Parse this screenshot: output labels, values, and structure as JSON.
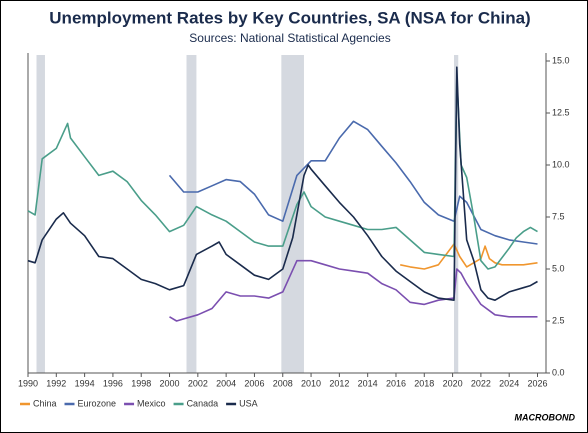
{
  "chart_data": {
    "type": "line",
    "title": "Unemployment Rates by Key Countries, SA (NSA for China)",
    "subtitle": "Sources: National Statistical Agencies",
    "source_logo": "MACROBOND",
    "xlim": [
      1990,
      2026.6
    ],
    "xticks": [
      1990,
      1992,
      1994,
      1996,
      1998,
      2000,
      2002,
      2004,
      2006,
      2008,
      2010,
      2012,
      2014,
      2016,
      2018,
      2020,
      2022,
      2024,
      2026
    ],
    "ylim": [
      0,
      15
    ],
    "yticks": [
      {
        "value": 0,
        "label": "0.0"
      },
      {
        "value": 2.5,
        "label": "2.5"
      },
      {
        "value": 5,
        "label": "5.0"
      },
      {
        "value": 7.5,
        "label": "7.5"
      },
      {
        "value": 10,
        "label": "10.0"
      },
      {
        "value": 12.5,
        "label": "12.5"
      },
      {
        "value": 15,
        "label": "15.0"
      }
    ],
    "shaded_periods": [
      [
        1990.6,
        1991.2
      ],
      [
        2001.2,
        2001.9
      ],
      [
        2007.9,
        2009.5
      ],
      [
        2020.1,
        2020.4
      ]
    ],
    "series": [
      {
        "name": "China",
        "color": "#f0962e",
        "x": [
          2016.3,
          2017,
          2018,
          2019,
          2020.1,
          2020.5,
          2021,
          2022,
          2022.3,
          2022.6,
          2023,
          2023.5,
          2024,
          2025,
          2026
        ],
        "values": [
          5.2,
          5.1,
          5.0,
          5.2,
          6.2,
          5.6,
          5.1,
          5.5,
          6.1,
          5.5,
          5.3,
          5.2,
          5.2,
          5.2,
          5.3
        ]
      },
      {
        "name": "Eurozone",
        "color": "#4a6aad",
        "x": [
          2000,
          2001,
          2002,
          2003,
          2004,
          2005,
          2006,
          2007,
          2008,
          2009,
          2010,
          2011,
          2012,
          2013,
          2014,
          2015,
          2016,
          2017,
          2018,
          2019,
          2020.1,
          2020.5,
          2021,
          2022,
          2023,
          2024,
          2025,
          2026
        ],
        "values": [
          9.5,
          8.7,
          8.7,
          9.0,
          9.3,
          9.2,
          8.6,
          7.6,
          7.3,
          9.5,
          10.2,
          10.2,
          11.3,
          12.1,
          11.7,
          10.9,
          10.1,
          9.2,
          8.2,
          7.6,
          7.3,
          8.5,
          8.2,
          6.9,
          6.6,
          6.4,
          6.3,
          6.2
        ]
      },
      {
        "name": "Mexico",
        "color": "#7b4fb0",
        "x": [
          2000,
          2000.5,
          2001,
          2002,
          2003,
          2004,
          2005,
          2006,
          2007,
          2008,
          2009,
          2010,
          2011,
          2012,
          2013,
          2014,
          2015,
          2016,
          2017,
          2018,
          2019,
          2020.1,
          2020.3,
          2020.6,
          2021,
          2022,
          2023,
          2024,
          2025,
          2026
        ],
        "values": [
          2.7,
          2.5,
          2.6,
          2.8,
          3.1,
          3.9,
          3.7,
          3.7,
          3.6,
          3.9,
          5.4,
          5.4,
          5.2,
          5.0,
          4.9,
          4.8,
          4.3,
          4.0,
          3.4,
          3.3,
          3.5,
          3.6,
          5.0,
          4.8,
          4.3,
          3.3,
          2.8,
          2.7,
          2.7,
          2.7
        ]
      },
      {
        "name": "Canada",
        "color": "#4a9e8a",
        "x": [
          1990,
          1990.5,
          1991,
          1992,
          1992.8,
          1993,
          1994,
          1995,
          1996,
          1997,
          1998,
          1999,
          2000,
          2001,
          2001.9,
          2003,
          2004,
          2005,
          2006,
          2007,
          2008,
          2009,
          2009.5,
          2010,
          2011,
          2012,
          2013,
          2014,
          2015,
          2016,
          2017,
          2018,
          2019,
          2020.1,
          2020.3,
          2020.6,
          2021,
          2021.5,
          2022,
          2022.5,
          2023,
          2024,
          2024.5,
          2025,
          2025.5,
          2026
        ],
        "values": [
          7.8,
          7.6,
          10.3,
          10.8,
          12.0,
          11.3,
          10.4,
          9.5,
          9.7,
          9.2,
          8.3,
          7.6,
          6.8,
          7.1,
          8.0,
          7.6,
          7.3,
          6.8,
          6.3,
          6.1,
          6.1,
          8.1,
          8.7,
          8.0,
          7.5,
          7.3,
          7.1,
          6.9,
          6.9,
          7.0,
          6.4,
          5.8,
          5.7,
          5.6,
          14.2,
          10.0,
          9.4,
          7.5,
          5.4,
          5.0,
          5.1,
          6.0,
          6.5,
          6.8,
          7.0,
          6.8
        ]
      },
      {
        "name": "USA",
        "color": "#1a2b4c",
        "x": [
          1990,
          1990.5,
          1991,
          1992,
          1992.5,
          1993,
          1994,
          1995,
          1996,
          1997,
          1998,
          1999,
          2000,
          2001,
          2001.9,
          2003,
          2003.5,
          2004,
          2005,
          2006,
          2007,
          2008,
          2008.7,
          2009.5,
          2009.8,
          2010,
          2011,
          2012,
          2013,
          2014,
          2015,
          2016,
          2017,
          2018,
          2019,
          2020.1,
          2020.3,
          2020.5,
          2021,
          2021.5,
          2022,
          2022.5,
          2023,
          2024,
          2025,
          2025.5,
          2026
        ],
        "values": [
          5.4,
          5.3,
          6.4,
          7.4,
          7.7,
          7.2,
          6.6,
          5.6,
          5.5,
          5.0,
          4.5,
          4.3,
          4.0,
          4.2,
          5.7,
          6.1,
          6.3,
          5.7,
          5.2,
          4.7,
          4.5,
          5.0,
          6.5,
          9.5,
          10.0,
          9.8,
          9.0,
          8.2,
          7.5,
          6.6,
          5.6,
          4.9,
          4.4,
          3.9,
          3.6,
          3.5,
          14.7,
          11.0,
          6.4,
          5.4,
          4.0,
          3.6,
          3.5,
          3.9,
          4.1,
          4.2,
          4.4
        ]
      }
    ]
  }
}
